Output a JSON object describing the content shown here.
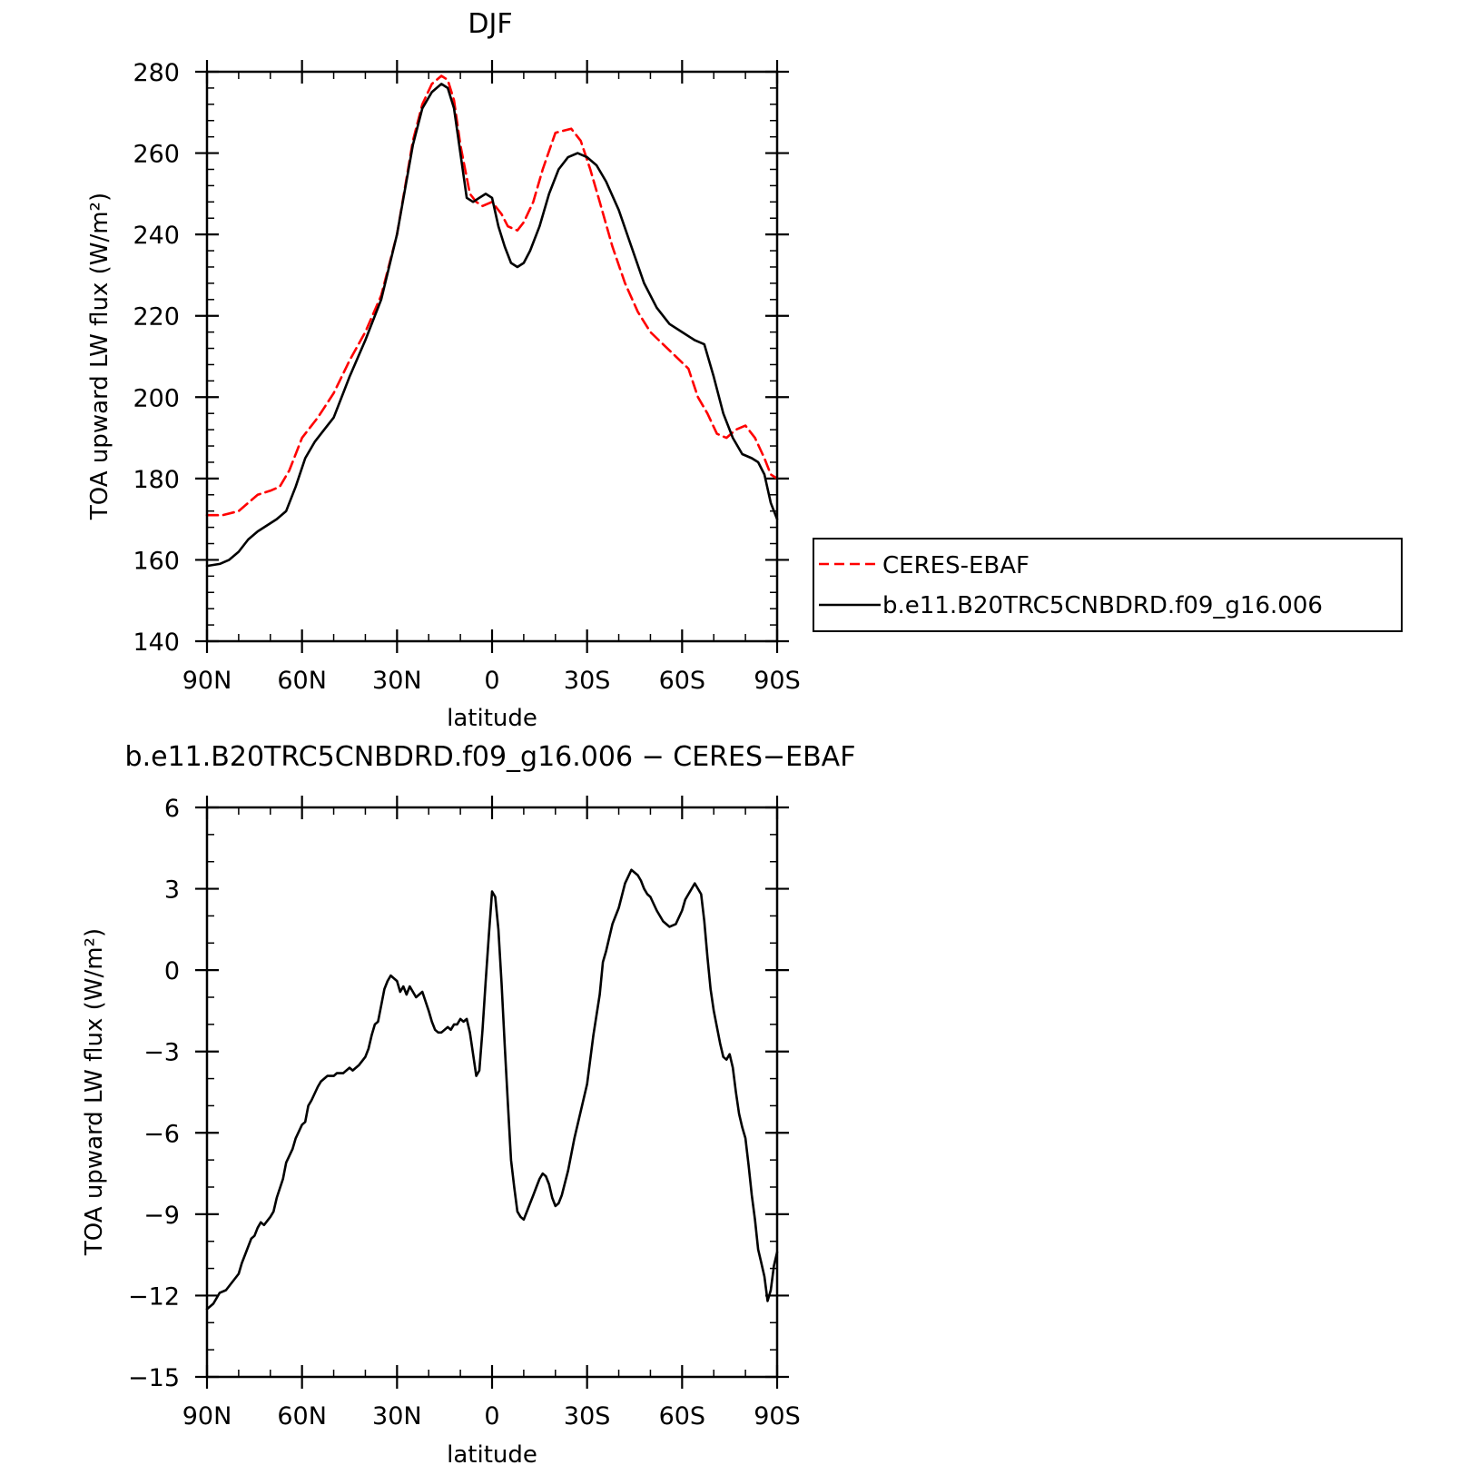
{
  "chart_data": [
    {
      "type": "line",
      "title": "DJF",
      "xlabel": "latitude",
      "ylabel": "TOA upward LW flux (W/m²)",
      "xlim": [
        -90,
        90
      ],
      "ylim": [
        140,
        280
      ],
      "x_direction": "north-to-south (90N left, 90S right)",
      "x_ticks": [
        -90,
        -60,
        -30,
        0,
        30,
        60,
        90
      ],
      "x_tick_labels": [
        "90N",
        "60N",
        "30N",
        "0",
        "30S",
        "60S",
        "90S"
      ],
      "y_ticks": [
        140,
        160,
        180,
        200,
        220,
        240,
        260,
        280
      ],
      "y_tick_labels": [
        "140",
        "160",
        "180",
        "200",
        "220",
        "240",
        "260",
        "280"
      ],
      "legend_position": "right, outside plot",
      "legend_entries": [
        "CERES-EBAF",
        "b.e11.B20TRC5CNBDRD.f09_g16.006"
      ],
      "series": [
        {
          "name": "CERES-EBAF",
          "color": "#ff0000",
          "dash": "dashed",
          "x": [
            -90,
            -85,
            -80,
            -77,
            -74,
            -70,
            -67,
            -64,
            -60,
            -55,
            -50,
            -45,
            -40,
            -35,
            -30,
            -25,
            -22,
            -19,
            -16,
            -14,
            -12,
            -10,
            -7,
            -5,
            -3,
            0,
            3,
            5,
            8,
            10,
            13,
            16,
            20,
            25,
            28,
            31,
            34,
            38,
            42,
            46,
            50,
            54,
            58,
            62,
            65,
            68,
            71,
            74,
            77,
            80,
            83,
            86,
            88,
            90
          ],
          "values": [
            171,
            171,
            172,
            174,
            176,
            177,
            178,
            182,
            190,
            195,
            201,
            209,
            216,
            225,
            240,
            263,
            272,
            277,
            279,
            278,
            273,
            262,
            250,
            248,
            247,
            248,
            245,
            242,
            241,
            243,
            248,
            256,
            265,
            266,
            263,
            256,
            248,
            237,
            228,
            221,
            216,
            213,
            210,
            207,
            200,
            196,
            191,
            190,
            192,
            193,
            190,
            185,
            181,
            180
          ]
        },
        {
          "name": "b.e11.B20TRC5CNBDRD.f09_g16.006",
          "color": "#000000",
          "dash": "solid",
          "x": [
            -90,
            -86,
            -83,
            -80,
            -77,
            -74,
            -72,
            -70,
            -68,
            -65,
            -62,
            -59,
            -56,
            -53,
            -50,
            -45,
            -40,
            -35,
            -30,
            -25,
            -22,
            -19,
            -16,
            -14,
            -12,
            -10,
            -8,
            -6,
            -4,
            -2,
            0,
            2,
            4,
            6,
            8,
            10,
            12,
            15,
            18,
            21,
            24,
            27,
            30,
            33,
            36,
            40,
            44,
            48,
            52,
            56,
            60,
            64,
            67,
            70,
            73,
            76,
            79,
            82,
            84,
            86,
            88,
            90
          ],
          "values": [
            158.5,
            159,
            160,
            162,
            165,
            167,
            168,
            169,
            170,
            172,
            178,
            185,
            189,
            192,
            195,
            205,
            214,
            224,
            240,
            262,
            271,
            275,
            277,
            276,
            271,
            260,
            249,
            248,
            249,
            250,
            249,
            242,
            237,
            233,
            232,
            233,
            236,
            242,
            250,
            256,
            259,
            260,
            259,
            257,
            253,
            246,
            237,
            228,
            222,
            218,
            216,
            214,
            213,
            205,
            196,
            190,
            186,
            185,
            184,
            181,
            174,
            170
          ]
        }
      ]
    },
    {
      "type": "line",
      "title": "b.e11.B20TRC5CNBDRD.f09_g16.006 − CERES−EBAF",
      "xlabel": "latitude",
      "ylabel": "TOA upward LW flux (W/m²)",
      "xlim": [
        -90,
        90
      ],
      "ylim": [
        -15,
        6
      ],
      "x_ticks": [
        -90,
        -60,
        -30,
        0,
        30,
        60,
        90
      ],
      "x_tick_labels": [
        "90N",
        "60N",
        "30N",
        "0",
        "30S",
        "60S",
        "90S"
      ],
      "y_ticks": [
        -15,
        -12,
        -9,
        -6,
        -3,
        0,
        3,
        6
      ],
      "y_tick_labels": [
        "−15",
        "−12",
        "−9",
        "−6",
        "−3",
        "0",
        "3",
        "6"
      ],
      "series": [
        {
          "color": "#000000",
          "dash": "solid",
          "x": [
            -90,
            -88,
            -86,
            -84,
            -82,
            -80,
            -79,
            -78,
            -76,
            -75,
            -74,
            -73,
            -72,
            -70,
            -69,
            -68,
            -66,
            -65,
            -63,
            -62,
            -60,
            -59,
            -58,
            -57,
            -55,
            -54,
            -52,
            -50,
            -49,
            -47,
            -46,
            -45,
            -44,
            -43,
            -42,
            -40,
            -39,
            -38,
            -37,
            -36,
            -35,
            -34,
            -33,
            -32,
            -31,
            -30,
            -29,
            -28,
            -27,
            -26,
            -25,
            -24,
            -22,
            -20,
            -19,
            -18,
            -17,
            -16,
            -15,
            -14,
            -13,
            -12,
            -11,
            -10,
            -9,
            -8,
            -7,
            -6,
            -5,
            -4,
            -3,
            -2,
            -1,
            0,
            1,
            2,
            3,
            4,
            5,
            6,
            7,
            8,
            9,
            10,
            11,
            12,
            13,
            14,
            15,
            16,
            17,
            18,
            19,
            20,
            21,
            22,
            24,
            26,
            28,
            30,
            32,
            34,
            35,
            36,
            38,
            40,
            42,
            44,
            46,
            47,
            48,
            49,
            50,
            52,
            54,
            56,
            58,
            60,
            61,
            62,
            64,
            66,
            67,
            68,
            69,
            70,
            72,
            73,
            74,
            75,
            76,
            77,
            78,
            79,
            80,
            81,
            82,
            83,
            84,
            85,
            86,
            87,
            88,
            89,
            90
          ],
          "values": [
            -12.5,
            -12.3,
            -11.9,
            -11.8,
            -11.5,
            -11.2,
            -10.8,
            -10.5,
            -9.9,
            -9.8,
            -9.5,
            -9.3,
            -9.4,
            -9.1,
            -8.9,
            -8.4,
            -7.7,
            -7.1,
            -6.6,
            -6.2,
            -5.7,
            -5.6,
            -5.0,
            -4.8,
            -4.3,
            -4.1,
            -3.9,
            -3.9,
            -3.8,
            -3.8,
            -3.7,
            -3.6,
            -3.7,
            -3.6,
            -3.5,
            -3.2,
            -2.9,
            -2.4,
            -2.0,
            -1.9,
            -1.3,
            -0.7,
            -0.4,
            -0.2,
            -0.3,
            -0.4,
            -0.8,
            -0.6,
            -0.9,
            -0.6,
            -0.8,
            -1.0,
            -0.8,
            -1.5,
            -1.9,
            -2.2,
            -2.3,
            -2.3,
            -2.2,
            -2.1,
            -2.2,
            -2.0,
            -2.0,
            -1.8,
            -1.9,
            -1.8,
            -2.3,
            -3.1,
            -3.9,
            -3.7,
            -2.2,
            -0.4,
            1.3,
            2.9,
            2.7,
            1.5,
            -0.5,
            -2.8,
            -4.9,
            -7.0,
            -8.0,
            -8.9,
            -9.1,
            -9.2,
            -8.9,
            -8.6,
            -8.3,
            -8.0,
            -7.7,
            -7.5,
            -7.6,
            -7.9,
            -8.4,
            -8.7,
            -8.6,
            -8.3,
            -7.4,
            -6.2,
            -5.2,
            -4.2,
            -2.4,
            -0.9,
            0.3,
            0.7,
            1.7,
            2.3,
            3.2,
            3.7,
            3.5,
            3.3,
            3.0,
            2.8,
            2.7,
            2.2,
            1.8,
            1.6,
            1.7,
            2.2,
            2.6,
            2.8,
            3.2,
            2.8,
            1.8,
            0.5,
            -0.7,
            -1.5,
            -2.7,
            -3.2,
            -3.3,
            -3.1,
            -3.6,
            -4.5,
            -5.3,
            -5.8,
            -6.2,
            -7.2,
            -8.3,
            -9.2,
            -10.3,
            -10.8,
            -11.3,
            -12.2,
            -11.8,
            -10.9,
            -10.4
          ]
        }
      ]
    }
  ],
  "legend": {
    "entries": [
      {
        "label": "CERES-EBAF",
        "color": "#ff0000",
        "dash": "dashed"
      },
      {
        "label": "b.e11.B20TRC5CNBDRD.f09_g16.006",
        "color": "#000000",
        "dash": "solid"
      }
    ]
  }
}
